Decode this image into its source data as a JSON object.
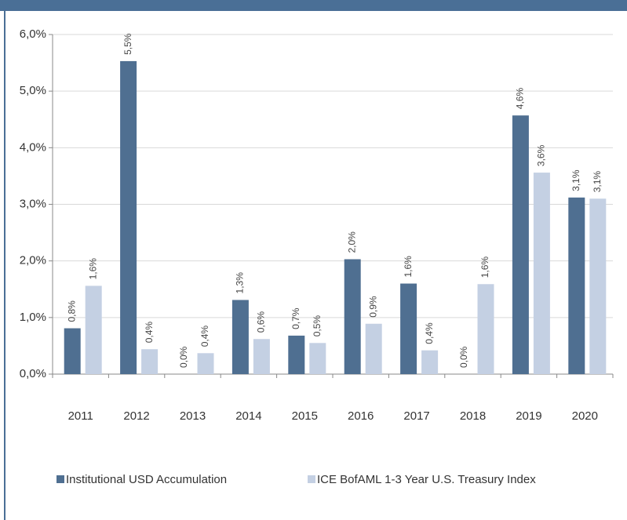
{
  "chart_data": {
    "type": "bar",
    "categories": [
      "2011",
      "2012",
      "2013",
      "2014",
      "2015",
      "2016",
      "2017",
      "2018",
      "2019",
      "2020"
    ],
    "series": [
      {
        "name": "Institutional USD Accumulation",
        "color": "#4f6f91",
        "values": [
          0.81,
          5.53,
          0.0,
          1.31,
          0.68,
          2.03,
          1.6,
          0.0,
          4.57,
          3.12
        ],
        "value_labels": [
          "0,8%",
          "5,5%",
          "0,0%",
          "1,3%",
          "0,7%",
          "2,0%",
          "1,6%",
          "0,0%",
          "4,6%",
          "3,1%"
        ]
      },
      {
        "name": "ICE BofAML 1-3 Year U.S. Treasury Index",
        "color": "#c4d0e3",
        "values": [
          1.56,
          0.44,
          0.37,
          0.62,
          0.55,
          0.89,
          0.42,
          1.59,
          3.56,
          3.1
        ],
        "value_labels": [
          "1,6%",
          "0,4%",
          "0,4%",
          "0,6%",
          "0,5%",
          "0,9%",
          "0,4%",
          "1,6%",
          "3,6%",
          "3,1%"
        ]
      }
    ],
    "ylim": [
      0,
      6
    ],
    "yticks": [
      {
        "value": 0,
        "label": "0,0%"
      },
      {
        "value": 1,
        "label": "1,0%"
      },
      {
        "value": 2,
        "label": "2,0%"
      },
      {
        "value": 3,
        "label": "3,0%"
      },
      {
        "value": 4,
        "label": "4,0%"
      },
      {
        "value": 5,
        "label": "5,0%"
      },
      {
        "value": 6,
        "label": "6,0%"
      }
    ],
    "grid": true,
    "legend": "bottom"
  }
}
